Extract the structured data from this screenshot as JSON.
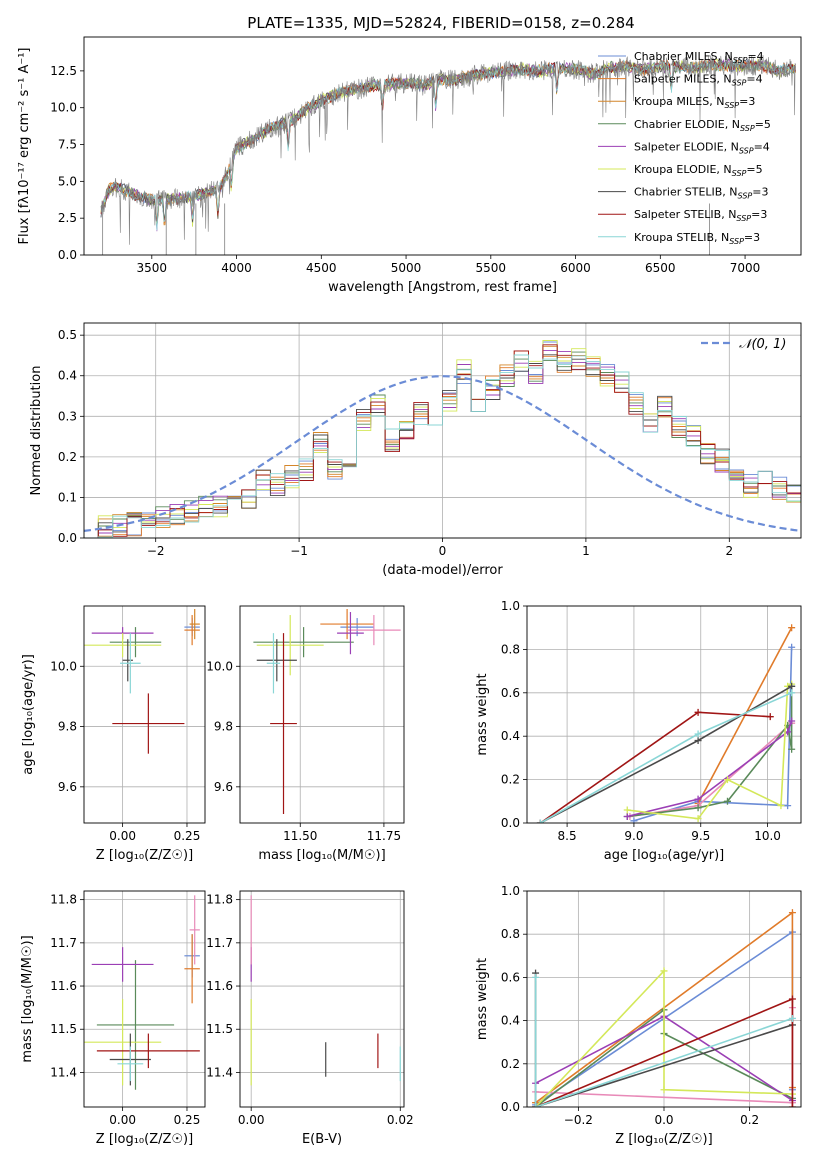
{
  "figure": {
    "title": "PLATE=1335, MJD=52824, FIBERID=0158, z=0.284"
  },
  "colors": {
    "chabrier_miles": "#6b8cd6",
    "salpeter_miles": "#e07b2a",
    "kroupa_miles": "#d4862a",
    "chabrier_elodie": "#5a8a5a",
    "salpeter_elodie": "#9b3fb5",
    "kroupa_elodie": "#d4e85a",
    "chabrier_stelib": "#4a4a4a",
    "salpeter_stelib": "#a01515",
    "kroupa_stelib": "#8ad6d6",
    "extra_pink": "#e88ab8",
    "data": "#808080",
    "normal": "#6b8cd6"
  },
  "legend": {
    "entries": [
      {
        "label": "Chabrier MILES, N",
        "sub": "SSP",
        "suffix": "=4",
        "color": "#6b8cd6"
      },
      {
        "label": "Salpeter MILES, N",
        "sub": "SSP",
        "suffix": "=4",
        "color": "#e07b2a"
      },
      {
        "label": "Kroupa MILES, N",
        "sub": "SSP",
        "suffix": "=3",
        "color": "#d4862a"
      },
      {
        "label": "Chabrier ELODIE, N",
        "sub": "SSP",
        "suffix": "=5",
        "color": "#5a8a5a"
      },
      {
        "label": "Salpeter ELODIE, N",
        "sub": "SSP",
        "suffix": "=4",
        "color": "#9b3fb5"
      },
      {
        "label": "Kroupa ELODIE, N",
        "sub": "SSP",
        "suffix": "=5",
        "color": "#d4e85a"
      },
      {
        "label": "Chabrier STELIB, N",
        "sub": "SSP",
        "suffix": "=3",
        "color": "#4a4a4a"
      },
      {
        "label": "Salpeter STELIB, N",
        "sub": "SSP",
        "suffix": "=3",
        "color": "#a01515"
      },
      {
        "label": "Kroupa STELIB, N",
        "sub": "SSP",
        "suffix": "=3",
        "color": "#8ad6d6"
      }
    ],
    "normal_label": "𝒩(0, 1)"
  },
  "chart_data": [
    {
      "id": "spectrum",
      "type": "line",
      "xlabel": "wavelength [Angstrom, rest frame]",
      "ylabel": "Flux [f",
      "ylabel_full": "Flux [fλ10⁻¹⁷ erg cm⁻² s⁻¹ A⁻¹]",
      "xlim": [
        3100,
        7330
      ],
      "ylim": [
        0,
        14.8
      ],
      "xticks": [
        3500,
        4000,
        4500,
        5000,
        5500,
        6000,
        6500,
        7000
      ],
      "yticks": [
        0.0,
        2.5,
        5.0,
        7.5,
        10.0,
        12.5
      ],
      "ytick_labels": [
        "0.0",
        "2.5",
        "5.0",
        "7.5",
        "10.0",
        "12.5"
      ],
      "continuum_x": [
        3200,
        3250,
        3300,
        3400,
        3500,
        3600,
        3700,
        3800,
        3900,
        3950,
        4000,
        4100,
        4200,
        4300,
        4400,
        4500,
        4600,
        4700,
        4800,
        4900,
        5000,
        5100,
        5200,
        5300,
        5400,
        5500,
        5600,
        5700,
        5800,
        5900,
        6000,
        6100,
        6200,
        6300,
        6400,
        6500,
        6600,
        6700,
        6800,
        6900,
        7000,
        7100,
        7200,
        7300
      ],
      "continuum_y": [
        3.0,
        4.5,
        4.6,
        4.1,
        3.7,
        3.8,
        3.9,
        4.1,
        4.6,
        5.6,
        7.2,
        7.9,
        8.6,
        9.0,
        9.8,
        10.5,
        11.0,
        11.2,
        11.5,
        11.6,
        11.7,
        11.5,
        11.9,
        11.9,
        12.2,
        12.4,
        12.5,
        12.6,
        12.5,
        12.7,
        12.6,
        12.3,
        12.7,
        12.8,
        12.6,
        12.8,
        12.8,
        12.7,
        12.9,
        12.9,
        12.8,
        12.9,
        12.5,
        12.7
      ]
    },
    {
      "id": "residuals",
      "type": "step",
      "xlabel": "(data-model)/error",
      "ylabel": "Normed distribution",
      "xlim": [
        -2.5,
        2.5
      ],
      "ylim": [
        0,
        0.53
      ],
      "xticks": [
        -2,
        -1,
        0,
        1,
        2
      ],
      "xtick_labels": [
        "−2",
        "−1",
        "0",
        "1",
        "2"
      ],
      "yticks": [
        0.0,
        0.1,
        0.2,
        0.3,
        0.4,
        0.5
      ],
      "ytick_labels": [
        "0.0",
        "0.1",
        "0.2",
        "0.3",
        "0.4",
        "0.5"
      ],
      "bin_width": 0.1,
      "bin_start": -2.5,
      "base_hist": [
        0.02,
        0.025,
        0.03,
        0.035,
        0.04,
        0.05,
        0.055,
        0.065,
        0.075,
        0.08,
        0.12,
        0.09,
        0.14,
        0.13,
        0.15,
        0.17,
        0.24,
        0.17,
        0.2,
        0.29,
        0.33,
        0.24,
        0.27,
        0.31,
        0.29,
        0.34,
        0.41,
        0.33,
        0.37,
        0.4,
        0.44,
        0.41,
        0.46,
        0.43,
        0.44,
        0.42,
        0.4,
        0.38,
        0.33,
        0.29,
        0.32,
        0.27,
        0.25,
        0.21,
        0.19,
        0.15,
        0.13,
        0.15,
        0.12,
        0.11,
        0.1,
        0.08,
        0.09,
        0.065,
        0.09,
        0.05,
        0.04,
        0.035,
        0.03,
        0.025,
        0.03,
        0.02
      ]
    },
    {
      "id": "age-vs-z",
      "type": "errorbar",
      "xlabel": "Z [log₁₀(Z/Z☉)]",
      "ylabel": "age  [log₁₀(age/yr)]",
      "xlim": [
        -0.15,
        0.32
      ],
      "ylim": [
        9.48,
        10.2
      ],
      "xticks": [
        0.0,
        0.25
      ],
      "xtick_labels": [
        "0.00",
        "0.25"
      ],
      "yticks": [
        9.6,
        9.8,
        10.0
      ],
      "ytick_labels": [
        "9.6",
        "9.8",
        "10.0"
      ],
      "points": [
        {
          "series": "Chabrier MILES",
          "x": 0.27,
          "xe": 0.03,
          "y": 10.13,
          "ye": 0.03,
          "color": "#6b8cd6"
        },
        {
          "series": "Salpeter MILES",
          "x": 0.27,
          "xe": 0.03,
          "y": 10.12,
          "ye": 0.05,
          "color": "#e07b2a"
        },
        {
          "series": "Kroupa MILES",
          "x": 0.28,
          "xe": 0.02,
          "y": 10.14,
          "ye": 0.05,
          "color": "#d4862a"
        },
        {
          "series": "Chabrier ELODIE",
          "x": 0.05,
          "xe": 0.1,
          "y": 10.08,
          "ye": 0.05,
          "color": "#5a8a5a"
        },
        {
          "series": "Salpeter ELODIE",
          "x": 0.0,
          "xe": 0.12,
          "y": 10.11,
          "ye": 0.02,
          "color": "#9b3fb5"
        },
        {
          "series": "Kroupa ELODIE",
          "x": 0.0,
          "xe": 0.15,
          "y": 10.07,
          "ye": 0.04,
          "color": "#d4e85a"
        },
        {
          "series": "Chabrier STELIB",
          "x": 0.02,
          "xe": 0.02,
          "y": 10.02,
          "ye": 0.07,
          "color": "#4a4a4a"
        },
        {
          "series": "Salpeter STELIB",
          "x": 0.1,
          "xe": 0.14,
          "y": 9.81,
          "ye": 0.1,
          "color": "#a01515"
        },
        {
          "series": "Kroupa STELIB",
          "x": 0.03,
          "xe": 0.04,
          "y": 10.01,
          "ye": 0.1,
          "color": "#8ad6d6"
        }
      ]
    },
    {
      "id": "age-vs-mass",
      "type": "errorbar",
      "xlabel": "mass [log₁₀(M/M☉)]",
      "ylabel": "",
      "xlim": [
        11.32,
        11.81
      ],
      "ylim": [
        9.48,
        10.2
      ],
      "xticks": [
        11.5,
        11.75
      ],
      "xtick_labels": [
        "11.50",
        "11.75"
      ],
      "yticks": [
        9.6,
        9.8,
        10.0
      ],
      "ytick_labels": [
        "9.6",
        "9.8",
        "10.0"
      ],
      "points": [
        {
          "series": "Chabrier MILES",
          "x": 11.67,
          "xe": 0.05,
          "y": 10.13,
          "ye": 0.03,
          "color": "#6b8cd6"
        },
        {
          "series": "Salpeter MILES",
          "x": 11.64,
          "xe": 0.08,
          "y": 10.14,
          "ye": 0.05,
          "color": "#e07b2a"
        },
        {
          "series": "Kroupa MILES",
          "x": 11.72,
          "xe": 0.08,
          "y": 10.12,
          "ye": 0.05,
          "color": "#e88ab8"
        },
        {
          "series": "Chabrier ELODIE",
          "x": 11.51,
          "xe": 0.15,
          "y": 10.08,
          "ye": 0.05,
          "color": "#5a8a5a"
        },
        {
          "series": "Salpeter ELODIE",
          "x": 11.65,
          "xe": 0.04,
          "y": 10.11,
          "ye": 0.07,
          "color": "#9b3fb5"
        },
        {
          "series": "Kroupa ELODIE",
          "x": 11.47,
          "xe": 0.1,
          "y": 10.07,
          "ye": 0.1,
          "color": "#d4e85a"
        },
        {
          "series": "Chabrier STELIB",
          "x": 11.43,
          "xe": 0.06,
          "y": 10.02,
          "ye": 0.07,
          "color": "#4a4a4a"
        },
        {
          "series": "Salpeter STELIB",
          "x": 11.45,
          "xe": 0.04,
          "y": 9.81,
          "ye": 0.3,
          "color": "#a01515"
        },
        {
          "series": "Kroupa STELIB",
          "x": 11.42,
          "xe": 0.02,
          "y": 10.01,
          "ye": 0.1,
          "color": "#8ad6d6"
        }
      ]
    },
    {
      "id": "mass-weight-vs-age",
      "type": "line",
      "xlabel": "age  [log₁₀(age/yr)]",
      "ylabel": "mass weight",
      "xlim": [
        8.2,
        10.25
      ],
      "ylim": [
        0,
        1.0
      ],
      "xticks": [
        8.5,
        9.0,
        9.5,
        10.0
      ],
      "xtick_labels": [
        "8.5",
        "9.0",
        "9.5",
        "10.0"
      ],
      "yticks": [
        0.0,
        0.2,
        0.4,
        0.6,
        0.8,
        1.0
      ],
      "ytick_labels": [
        "0.0",
        "0.2",
        "0.4",
        "0.6",
        "0.8",
        "1.0"
      ],
      "series": [
        {
          "name": "Chabrier MILES",
          "color": "#6b8cd6",
          "x": [
            9.0,
            9.48,
            10.15,
            10.18
          ],
          "y": [
            0.01,
            0.1,
            0.08,
            0.81
          ]
        },
        {
          "name": "Salpeter MILES",
          "color": "#e07b2a",
          "x": [
            9.48,
            10.18
          ],
          "y": [
            0.09,
            0.9
          ]
        },
        {
          "name": "Kroupa MILES",
          "color": "#e88ab8",
          "x": [
            8.97,
            9.48,
            10.18
          ],
          "y": [
            0.03,
            0.08,
            0.46
          ]
        },
        {
          "name": "Chabrier ELODIE",
          "color": "#5a8a5a",
          "x": [
            8.95,
            9.48,
            9.7,
            10.15,
            10.18,
            10.18
          ],
          "y": [
            0.03,
            0.07,
            0.1,
            0.45,
            0.34,
            0.63
          ]
        },
        {
          "name": "Salpeter ELODIE",
          "color": "#9b3fb5",
          "x": [
            8.95,
            9.48,
            10.15,
            10.18
          ],
          "y": [
            0.03,
            0.11,
            0.42,
            0.47
          ]
        },
        {
          "name": "Kroupa ELODIE",
          "color": "#d4e85a",
          "x": [
            8.95,
            9.48,
            9.7,
            10.1,
            10.15,
            10.18
          ],
          "y": [
            0.06,
            0.02,
            0.2,
            0.08,
            0.63,
            0.64
          ]
        },
        {
          "name": "Chabrier STELIB",
          "color": "#4a4a4a",
          "x": [
            8.3,
            9.48,
            10.18
          ],
          "y": [
            0.0,
            0.38,
            0.63
          ]
        },
        {
          "name": "Salpeter STELIB",
          "color": "#a01515",
          "x": [
            8.3,
            9.48,
            10.02
          ],
          "y": [
            0.0,
            0.51,
            0.49
          ]
        },
        {
          "name": "Kroupa STELIB",
          "color": "#8ad6d6",
          "x": [
            8.3,
            9.48,
            10.18
          ],
          "y": [
            0.0,
            0.41,
            0.6
          ]
        }
      ]
    },
    {
      "id": "mass-vs-z",
      "type": "errorbar",
      "xlabel": "Z [log₁₀(Z/Z☉)]",
      "ylabel": "mass [log₁₀(M/M☉)]",
      "xlim": [
        -0.15,
        0.32
      ],
      "ylim": [
        11.32,
        11.82
      ],
      "xticks": [
        0.0,
        0.25
      ],
      "xtick_labels": [
        "0.00",
        "0.25"
      ],
      "yticks": [
        11.4,
        11.5,
        11.6,
        11.7,
        11.8
      ],
      "ytick_labels": [
        "11.4",
        "11.5",
        "11.6",
        "11.7",
        "11.8"
      ],
      "points": [
        {
          "series": "Chabrier MILES",
          "x": 0.27,
          "xe": 0.03,
          "y": 11.67,
          "ye": 0.05,
          "color": "#6b8cd6"
        },
        {
          "series": "Salpeter MILES",
          "x": 0.27,
          "xe": 0.03,
          "y": 11.64,
          "ye": 0.08,
          "color": "#e07b2a"
        },
        {
          "series": "Kroupa MILES",
          "x": 0.28,
          "xe": 0.02,
          "y": 11.73,
          "ye": 0.08,
          "color": "#e88ab8"
        },
        {
          "series": "Chabrier ELODIE",
          "x": 0.05,
          "xe": 0.15,
          "y": 11.51,
          "ye": 0.15,
          "color": "#5a8a5a"
        },
        {
          "series": "Salpeter ELODIE",
          "x": 0.0,
          "xe": 0.12,
          "y": 11.65,
          "ye": 0.04,
          "color": "#9b3fb5"
        },
        {
          "series": "Kroupa ELODIE",
          "x": 0.0,
          "xe": 0.15,
          "y": 11.47,
          "ye": 0.1,
          "color": "#d4e85a"
        },
        {
          "series": "Chabrier STELIB",
          "x": 0.03,
          "xe": 0.08,
          "y": 11.43,
          "ye": 0.06,
          "color": "#4a4a4a"
        },
        {
          "series": "Salpeter STELIB",
          "x": 0.1,
          "xe": 0.2,
          "y": 11.45,
          "ye": 0.04,
          "color": "#a01515"
        },
        {
          "series": "Kroupa STELIB",
          "x": 0.03,
          "xe": 0.05,
          "y": 11.42,
          "ye": 0.04,
          "color": "#8ad6d6"
        }
      ]
    },
    {
      "id": "mass-vs-ebv",
      "type": "errorbar",
      "xlabel": "E(B-V)",
      "ylabel": "",
      "xlim": [
        -0.0015,
        0.0205
      ],
      "ylim": [
        11.32,
        11.82
      ],
      "xticks": [
        0.0,
        0.02
      ],
      "xtick_labels": [
        "0.00",
        "0.02"
      ],
      "yticks": [
        11.4,
        11.5,
        11.6,
        11.7,
        11.8
      ],
      "ytick_labels": [
        "11.4",
        "11.5",
        "11.6",
        "11.7",
        "11.8"
      ],
      "points": [
        {
          "series": "Salpeter ELODIE",
          "x": 0.0,
          "xe": 0.0,
          "y": 11.65,
          "ye": 0.04,
          "color": "#9b3fb5"
        },
        {
          "series": "Kroupa MILES",
          "x": 0.0,
          "xe": 0.0,
          "y": 11.73,
          "ye": 0.08,
          "color": "#e88ab8"
        },
        {
          "series": "Kroupa ELODIE",
          "x": 0.0,
          "xe": 0.0,
          "y": 11.47,
          "ye": 0.1,
          "color": "#d4e85a"
        },
        {
          "series": "Chabrier STELIB",
          "x": 0.01,
          "xe": 0.0,
          "y": 11.43,
          "ye": 0.04,
          "color": "#4a4a4a"
        },
        {
          "series": "Salpeter STELIB",
          "x": 0.017,
          "xe": 0.0,
          "y": 11.45,
          "ye": 0.04,
          "color": "#a01515"
        },
        {
          "series": "Kroupa STELIB",
          "x": 0.02,
          "xe": 0.0,
          "y": 11.42,
          "ye": 0.04,
          "color": "#8ad6d6"
        }
      ]
    },
    {
      "id": "mass-weight-vs-z",
      "type": "line",
      "xlabel": "Z [log₁₀(Z/Z☉)]",
      "ylabel": "mass weight",
      "xlim": [
        -0.32,
        0.32
      ],
      "ylim": [
        0,
        1.0
      ],
      "xticks": [
        -0.2,
        0.0,
        0.2
      ],
      "xtick_labels": [
        "−0.2",
        "0.0",
        "0.2"
      ],
      "yticks": [
        0.0,
        0.2,
        0.4,
        0.6,
        0.8,
        1.0
      ],
      "ytick_labels": [
        "0.0",
        "0.2",
        "0.4",
        "0.6",
        "0.8",
        "1.0"
      ],
      "series": [
        {
          "name": "Chabrier MILES",
          "color": "#6b8cd6",
          "x": [
            -0.3,
            0.3,
            0.3
          ],
          "y": [
            0.01,
            0.81,
            0.08
          ]
        },
        {
          "name": "Salpeter MILES",
          "color": "#e07b2a",
          "x": [
            -0.3,
            0.3,
            0.3
          ],
          "y": [
            0.02,
            0.9,
            0.09
          ]
        },
        {
          "name": "Kroupa MILES",
          "color": "#e88ab8",
          "x": [
            -0.3,
            0.3,
            0.3
          ],
          "y": [
            0.07,
            0.02,
            0.46
          ]
        },
        {
          "name": "Chabrier ELODIE",
          "color": "#5a8a5a",
          "x": [
            -0.3,
            0.0,
            0.0,
            0.3
          ],
          "y": [
            0.0,
            0.45,
            0.34,
            0.04
          ]
        },
        {
          "name": "Salpeter ELODIE",
          "color": "#9b3fb5",
          "x": [
            -0.3,
            0.0,
            0.3
          ],
          "y": [
            0.11,
            0.42,
            0.03
          ]
        },
        {
          "name": "Kroupa ELODIE",
          "color": "#d4e85a",
          "x": [
            -0.3,
            0.0,
            0.0,
            0.3
          ],
          "y": [
            0.0,
            0.63,
            0.08,
            0.06
          ]
        },
        {
          "name": "Chabrier STELIB",
          "color": "#4a4a4a",
          "x": [
            -0.3,
            -0.3,
            0.3
          ],
          "y": [
            0.62,
            0.0,
            0.38
          ]
        },
        {
          "name": "Salpeter STELIB",
          "color": "#a01515",
          "x": [
            -0.3,
            0.3,
            0.3
          ],
          "y": [
            0.0,
            0.5,
            0.0
          ]
        },
        {
          "name": "Kroupa STELIB",
          "color": "#8ad6d6",
          "x": [
            -0.3,
            -0.3,
            0.3
          ],
          "y": [
            0.6,
            0.0,
            0.41
          ]
        }
      ]
    }
  ]
}
